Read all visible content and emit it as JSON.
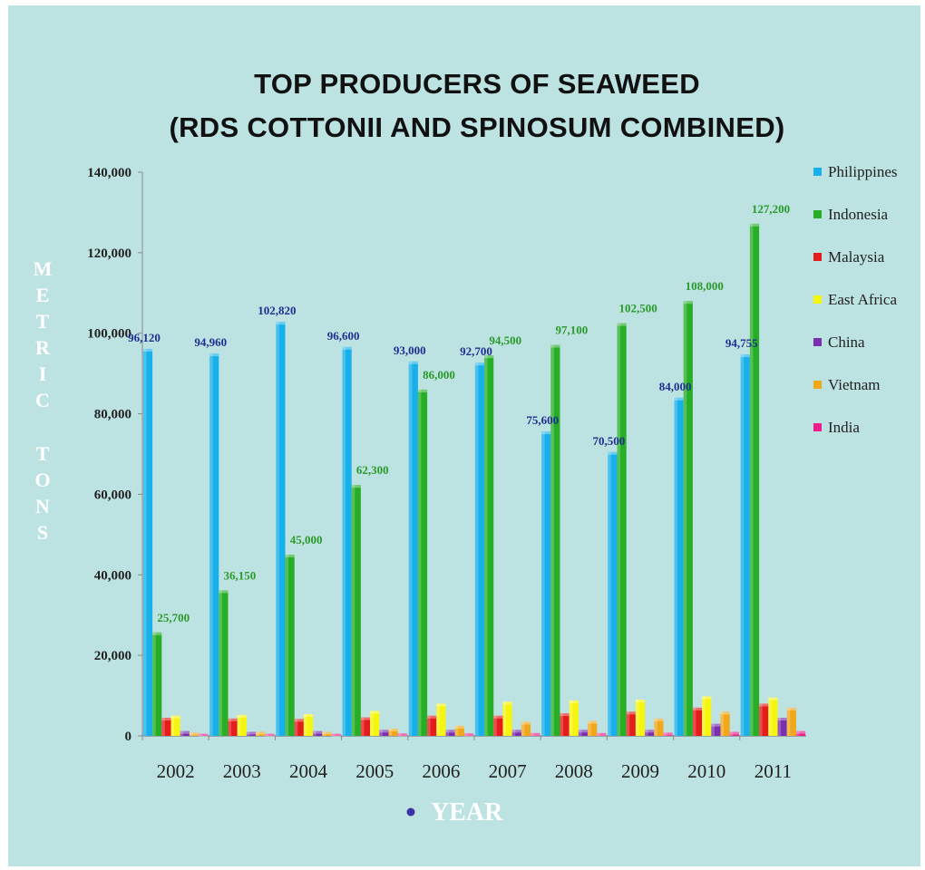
{
  "chart_data": {
    "type": "bar",
    "title": [
      "TOP PRODUCERS OF SEAWEED",
      "(RDS COTTONII AND SPINOSUM COMBINED)"
    ],
    "ylabel": "METRIC TONS",
    "xlabel": "YEAR",
    "ylim": [
      0,
      140000
    ],
    "yticks": [
      "0",
      "20,000",
      "40,000",
      "60,000",
      "80,000",
      "100,000",
      "120,000",
      "140,000"
    ],
    "legend_position": "right",
    "categories": [
      "2002",
      "2003",
      "2004",
      "2005",
      "2006",
      "2007",
      "2008",
      "2009",
      "2010",
      "2011"
    ],
    "series": [
      {
        "name": "Philippines",
        "color": "#17b0ea",
        "values": [
          96120,
          94960,
          102820,
          96600,
          93000,
          92700,
          75600,
          70500,
          84000,
          94755
        ]
      },
      {
        "name": "Indonesia",
        "color": "#27ae27",
        "values": [
          25700,
          36150,
          45000,
          62300,
          86000,
          94500,
          97100,
          102500,
          108000,
          127200
        ]
      },
      {
        "name": "Malaysia",
        "color": "#e51c1c",
        "values": [
          4500,
          4300,
          4200,
          4600,
          5000,
          5000,
          5600,
          6000,
          7000,
          8000
        ]
      },
      {
        "name": "East Africa",
        "color": "#f5f510",
        "values": [
          5000,
          5200,
          5400,
          6200,
          8000,
          8500,
          8800,
          9000,
          9800,
          9500
        ]
      },
      {
        "name": "China",
        "color": "#7a2fb0",
        "values": [
          1200,
          1000,
          1200,
          1500,
          1500,
          1500,
          1500,
          1500,
          3000,
          4500
        ]
      },
      {
        "name": "Vietnam",
        "color": "#f0a71a",
        "values": [
          800,
          1000,
          1000,
          1800,
          2500,
          3500,
          3700,
          4300,
          6000,
          7000
        ]
      },
      {
        "name": "India",
        "color": "#ee1c8c",
        "values": [
          500,
          500,
          500,
          600,
          600,
          700,
          700,
          800,
          1000,
          1200
        ]
      }
    ],
    "data_labels": {
      "Philippines": [
        "96,120",
        "94,960",
        "102,820",
        "96,600",
        "93,000",
        "92,700",
        "75,600",
        "70,500",
        "84,000",
        "94,755"
      ],
      "Indonesia": [
        "25,700",
        "36,150",
        "45,000",
        "62,300",
        "86,000",
        "94,500",
        "97,100",
        "102,500",
        "108,000",
        "127,200"
      ]
    },
    "label_colors": {
      "Philippines": "#1f2f8f",
      "Indonesia": "#2a9a2a"
    },
    "bullet_color": "#3b2fa5"
  }
}
